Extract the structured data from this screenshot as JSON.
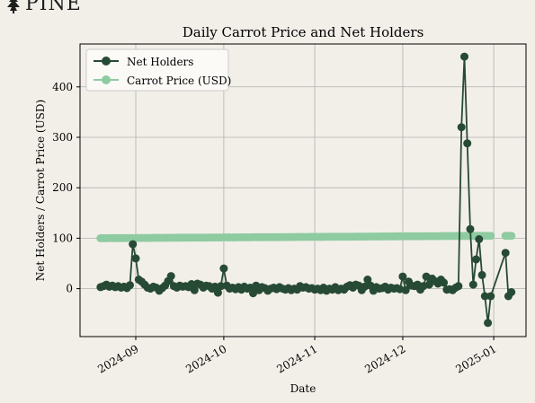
{
  "brand": {
    "logo_text": "PINE",
    "logo_icon": "pine-tree-icon"
  },
  "colors": {
    "background": "#f2efe9",
    "plot_background": "#f2efe9",
    "grid": "#b0b0b0",
    "net_holders": "#274a35",
    "carrot_price": "#8ecba0"
  },
  "chart_data": {
    "type": "line",
    "title": "Daily Carrot Price and Net Holders",
    "xlabel": "Date",
    "ylabel": "Net Holders / Carrot Price (USD)",
    "grid": true,
    "legend_position": "upper-left",
    "xlim": [
      "2024-08-13",
      "2025-01-12"
    ],
    "ylim": [
      -95,
      485
    ],
    "x_tick_labels": [
      "2024-09",
      "2024-10",
      "2024-11",
      "2024-12",
      "2025-01"
    ],
    "x_ticks": [
      "2024-09-01",
      "2024-10-01",
      "2024-11-01",
      "2024-12-01",
      "2025-01-01"
    ],
    "y_ticks": [
      0,
      100,
      200,
      300,
      400
    ],
    "y_tick_labels": [
      "0",
      "100",
      "200",
      "300",
      "400"
    ],
    "series": [
      {
        "name": "Net Holders",
        "color": "#274a35",
        "marker": "circle",
        "points": [
          [
            "2024-08-20",
            3
          ],
          [
            "2024-08-21",
            5
          ],
          [
            "2024-08-22",
            8
          ],
          [
            "2024-08-23",
            4
          ],
          [
            "2024-08-24",
            6
          ],
          [
            "2024-08-25",
            3
          ],
          [
            "2024-08-26",
            5
          ],
          [
            "2024-08-27",
            2
          ],
          [
            "2024-08-28",
            4
          ],
          [
            "2024-08-29",
            1
          ],
          [
            "2024-08-30",
            7
          ],
          [
            "2024-08-31",
            88
          ],
          [
            "2024-09-01",
            60
          ],
          [
            "2024-09-02",
            18
          ],
          [
            "2024-09-03",
            14
          ],
          [
            "2024-09-04",
            8
          ],
          [
            "2024-09-05",
            2
          ],
          [
            "2024-09-06",
            0
          ],
          [
            "2024-09-07",
            4
          ],
          [
            "2024-09-08",
            2
          ],
          [
            "2024-09-09",
            -4
          ],
          [
            "2024-09-10",
            1
          ],
          [
            "2024-09-11",
            6
          ],
          [
            "2024-09-12",
            15
          ],
          [
            "2024-09-13",
            25
          ],
          [
            "2024-09-14",
            5
          ],
          [
            "2024-09-15",
            2
          ],
          [
            "2024-09-16",
            6
          ],
          [
            "2024-09-17",
            4
          ],
          [
            "2024-09-18",
            5
          ],
          [
            "2024-09-19",
            3
          ],
          [
            "2024-09-20",
            9
          ],
          [
            "2024-09-21",
            -3
          ],
          [
            "2024-09-22",
            10
          ],
          [
            "2024-09-23",
            8
          ],
          [
            "2024-09-24",
            2
          ],
          [
            "2024-09-25",
            6
          ],
          [
            "2024-09-26",
            5
          ],
          [
            "2024-09-27",
            0
          ],
          [
            "2024-09-28",
            4
          ],
          [
            "2024-09-29",
            -8
          ],
          [
            "2024-09-30",
            5
          ],
          [
            "2024-10-01",
            40
          ],
          [
            "2024-10-02",
            6
          ],
          [
            "2024-10-03",
            0
          ],
          [
            "2024-10-04",
            2
          ],
          [
            "2024-10-05",
            -1
          ],
          [
            "2024-10-06",
            3
          ],
          [
            "2024-10-07",
            -2
          ],
          [
            "2024-10-08",
            4
          ],
          [
            "2024-10-09",
            0
          ],
          [
            "2024-10-10",
            2
          ],
          [
            "2024-10-11",
            -9
          ],
          [
            "2024-10-12",
            6
          ],
          [
            "2024-10-13",
            -3
          ],
          [
            "2024-10-14",
            3
          ],
          [
            "2024-10-15",
            1
          ],
          [
            "2024-10-16",
            -4
          ],
          [
            "2024-10-17",
            0
          ],
          [
            "2024-10-18",
            2
          ],
          [
            "2024-10-19",
            -1
          ],
          [
            "2024-10-20",
            3
          ],
          [
            "2024-10-21",
            0
          ],
          [
            "2024-10-22",
            -2
          ],
          [
            "2024-10-23",
            1
          ],
          [
            "2024-10-24",
            -3
          ],
          [
            "2024-10-25",
            0
          ],
          [
            "2024-10-26",
            -2
          ],
          [
            "2024-10-27",
            5
          ],
          [
            "2024-10-28",
            2
          ],
          [
            "2024-10-29",
            3
          ],
          [
            "2024-10-30",
            0
          ],
          [
            "2024-10-31",
            1
          ],
          [
            "2024-11-01",
            -2
          ],
          [
            "2024-11-02",
            0
          ],
          [
            "2024-11-03",
            -3
          ],
          [
            "2024-11-04",
            2
          ],
          [
            "2024-11-05",
            -4
          ],
          [
            "2024-11-06",
            0
          ],
          [
            "2024-11-07",
            -2
          ],
          [
            "2024-11-08",
            3
          ],
          [
            "2024-11-09",
            -3
          ],
          [
            "2024-11-10",
            0
          ],
          [
            "2024-11-11",
            -2
          ],
          [
            "2024-11-12",
            4
          ],
          [
            "2024-11-13",
            7
          ],
          [
            "2024-11-14",
            2
          ],
          [
            "2024-11-15",
            8
          ],
          [
            "2024-11-16",
            6
          ],
          [
            "2024-11-17",
            -3
          ],
          [
            "2024-11-18",
            4
          ],
          [
            "2024-11-19",
            18
          ],
          [
            "2024-11-20",
            6
          ],
          [
            "2024-11-21",
            -4
          ],
          [
            "2024-11-22",
            3
          ],
          [
            "2024-11-23",
            0
          ],
          [
            "2024-11-24",
            1
          ],
          [
            "2024-11-25",
            4
          ],
          [
            "2024-11-26",
            -2
          ],
          [
            "2024-11-27",
            2
          ],
          [
            "2024-11-28",
            0
          ],
          [
            "2024-11-29",
            1
          ],
          [
            "2024-11-30",
            -1
          ],
          [
            "2024-12-01",
            24
          ],
          [
            "2024-12-02",
            -3
          ],
          [
            "2024-12-03",
            14
          ],
          [
            "2024-12-04",
            6
          ],
          [
            "2024-12-05",
            5
          ],
          [
            "2024-12-06",
            8
          ],
          [
            "2024-12-07",
            -2
          ],
          [
            "2024-12-08",
            5
          ],
          [
            "2024-12-09",
            24
          ],
          [
            "2024-12-10",
            8
          ],
          [
            "2024-12-11",
            20
          ],
          [
            "2024-12-12",
            15
          ],
          [
            "2024-12-13",
            10
          ],
          [
            "2024-12-14",
            18
          ],
          [
            "2024-12-15",
            12
          ],
          [
            "2024-12-16",
            -2
          ],
          [
            "2024-12-17",
            -1
          ],
          [
            "2024-12-18",
            -3
          ],
          [
            "2024-12-19",
            2
          ],
          [
            "2024-12-20",
            5
          ],
          [
            "2024-12-21",
            320
          ],
          [
            "2024-12-22",
            460
          ],
          [
            "2024-12-23",
            288
          ],
          [
            "2024-12-24",
            118
          ],
          [
            "2024-12-25",
            8
          ],
          [
            "2024-12-26",
            58
          ],
          [
            "2024-12-27",
            98
          ],
          [
            "2024-12-28",
            27
          ],
          [
            "2024-12-29",
            -15
          ],
          [
            "2024-12-30",
            -68
          ],
          [
            "2024-12-31",
            -15
          ],
          [
            "2025-01-05",
            71
          ],
          [
            "2025-01-06",
            -15
          ],
          [
            "2025-01-07",
            -7
          ]
        ]
      },
      {
        "name": "Carrot Price (USD)",
        "color": "#8ecba0",
        "marker": "circle",
        "segments": [
          {
            "from": "2024-08-20",
            "to": "2024-12-31",
            "start_value": 100.0,
            "end_value": 104.8
          },
          {
            "from": "2025-01-05",
            "to": "2025-01-07",
            "start_value": 104.8,
            "end_value": 104.8
          }
        ]
      }
    ]
  }
}
